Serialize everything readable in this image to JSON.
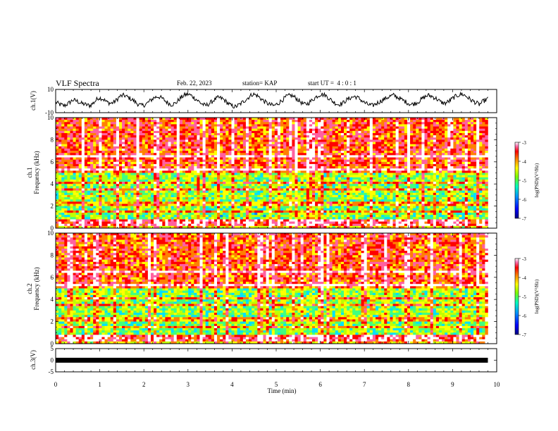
{
  "header": {
    "title": "VLF Spectra",
    "date": "Feb. 22, 2023",
    "station": "station= KAP",
    "start": "start UT =  4 : 0 : 1"
  },
  "colors": {
    "spectrogram": [
      "#000080",
      "#0000ff",
      "#0080ff",
      "#00e0ff",
      "#40ff80",
      "#c0ff00",
      "#ffff00",
      "#ff8000",
      "#ff0000",
      "#ff60a0",
      "#ffffff"
    ]
  },
  "chart_data": [
    {
      "type": "line",
      "panel": "waveform-ch1",
      "ylabel": "ch.1(V)",
      "ylim": [
        -10,
        10
      ],
      "yticks": [
        "10",
        "-10"
      ],
      "xlim": [
        0,
        10
      ],
      "series": [
        {
          "values": [
            -1,
            -3,
            -4,
            -2,
            1,
            0,
            -2,
            -3,
            -4,
            -1,
            3,
            2,
            -1,
            -2,
            0,
            4,
            5,
            3,
            1,
            -2,
            -4,
            -3,
            0,
            3,
            4,
            2,
            -1,
            -3,
            -2,
            2,
            5,
            6,
            4,
            1,
            -2,
            -4,
            -2,
            1,
            3,
            2,
            -1,
            -4,
            -5,
            -3,
            0,
            3,
            6,
            5,
            2,
            -1,
            -3,
            -4,
            -2,
            1,
            4,
            5,
            3,
            0,
            -3,
            -2,
            1,
            4,
            6,
            5,
            2,
            -1,
            -3,
            -2,
            1,
            3,
            4,
            2,
            -1,
            -3,
            -4,
            -2,
            0,
            2,
            4,
            5,
            3,
            1,
            -1,
            -3,
            -2,
            0,
            3,
            5,
            4,
            2,
            -1,
            -2,
            0,
            3,
            5,
            6,
            4,
            1,
            -1,
            -3,
            0,
            2
          ]
        }
      ]
    },
    {
      "type": "heatmap",
      "panel": "spectrogram-ch1",
      "ylabel": "ch.1\nFrequency (kHz)",
      "ylim": [
        0,
        10
      ],
      "yticks": [
        "0",
        "2",
        "4",
        "6",
        "8",
        "10"
      ],
      "xlim": [
        0,
        10
      ],
      "colorbar": {
        "label": "log(PSD)(V²/Hz)",
        "range": [
          -7,
          -3
        ],
        "ticks": [
          "-3",
          "-4",
          "-5",
          "-6",
          "-7"
        ]
      }
    },
    {
      "type": "heatmap",
      "panel": "spectrogram-ch2",
      "ylabel": "ch.2\nFrequency (kHz)",
      "ylim": [
        0,
        10
      ],
      "yticks": [
        "0",
        "2",
        "4",
        "6",
        "8",
        "10"
      ],
      "xlim": [
        0,
        10
      ],
      "colorbar": {
        "label": "log(PSD)(V²/Hz)",
        "range": [
          -7,
          -3
        ],
        "ticks": [
          "-3",
          "-4",
          "-5",
          "-6",
          "-7"
        ]
      }
    },
    {
      "type": "line",
      "panel": "waveform-ch3",
      "ylabel": "ch.3(V)",
      "ylim": [
        -5,
        5
      ],
      "yticks": [
        "5",
        "0",
        "-5"
      ],
      "xlim": [
        0,
        10
      ],
      "xlabel": "Time (min)",
      "xticks": [
        "0",
        "1",
        "2",
        "3",
        "4",
        "5",
        "6",
        "7",
        "8",
        "9",
        "10"
      ],
      "series": [
        {
          "values": [
            0,
            0
          ]
        }
      ]
    }
  ]
}
